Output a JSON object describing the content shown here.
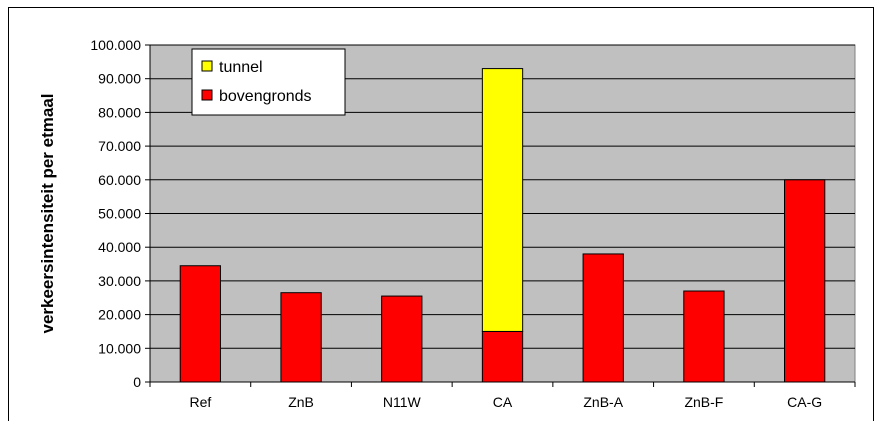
{
  "chart_data": {
    "type": "bar",
    "stacked": true,
    "title": "",
    "xlabel": "",
    "ylabel": "verkeersintensiteit per etmaal",
    "ylim": [
      0,
      100000
    ],
    "ytick_labels": [
      "0",
      "10.000",
      "20.000",
      "30.000",
      "40.000",
      "50.000",
      "60.000",
      "70.000",
      "80.000",
      "90.000",
      "100.000"
    ],
    "categories": [
      "Ref",
      "ZnB",
      "N11W",
      "CA",
      "ZnB-A",
      "ZnB-F",
      "CA-G"
    ],
    "series": [
      {
        "name": "bovengronds",
        "color": "#ff0000",
        "values": [
          34500,
          26500,
          25500,
          15000,
          38000,
          27000,
          60000
        ]
      },
      {
        "name": "tunnel",
        "color": "#ffff00",
        "values": [
          0,
          0,
          0,
          78000,
          0,
          0,
          0
        ]
      }
    ],
    "legend": {
      "position": "top-left",
      "entries": [
        {
          "label": "tunnel",
          "color": "#ffff00"
        },
        {
          "label": "bovengronds",
          "color": "#ff0000"
        }
      ]
    },
    "plot_background": "#c0c0c0",
    "grid": true
  }
}
